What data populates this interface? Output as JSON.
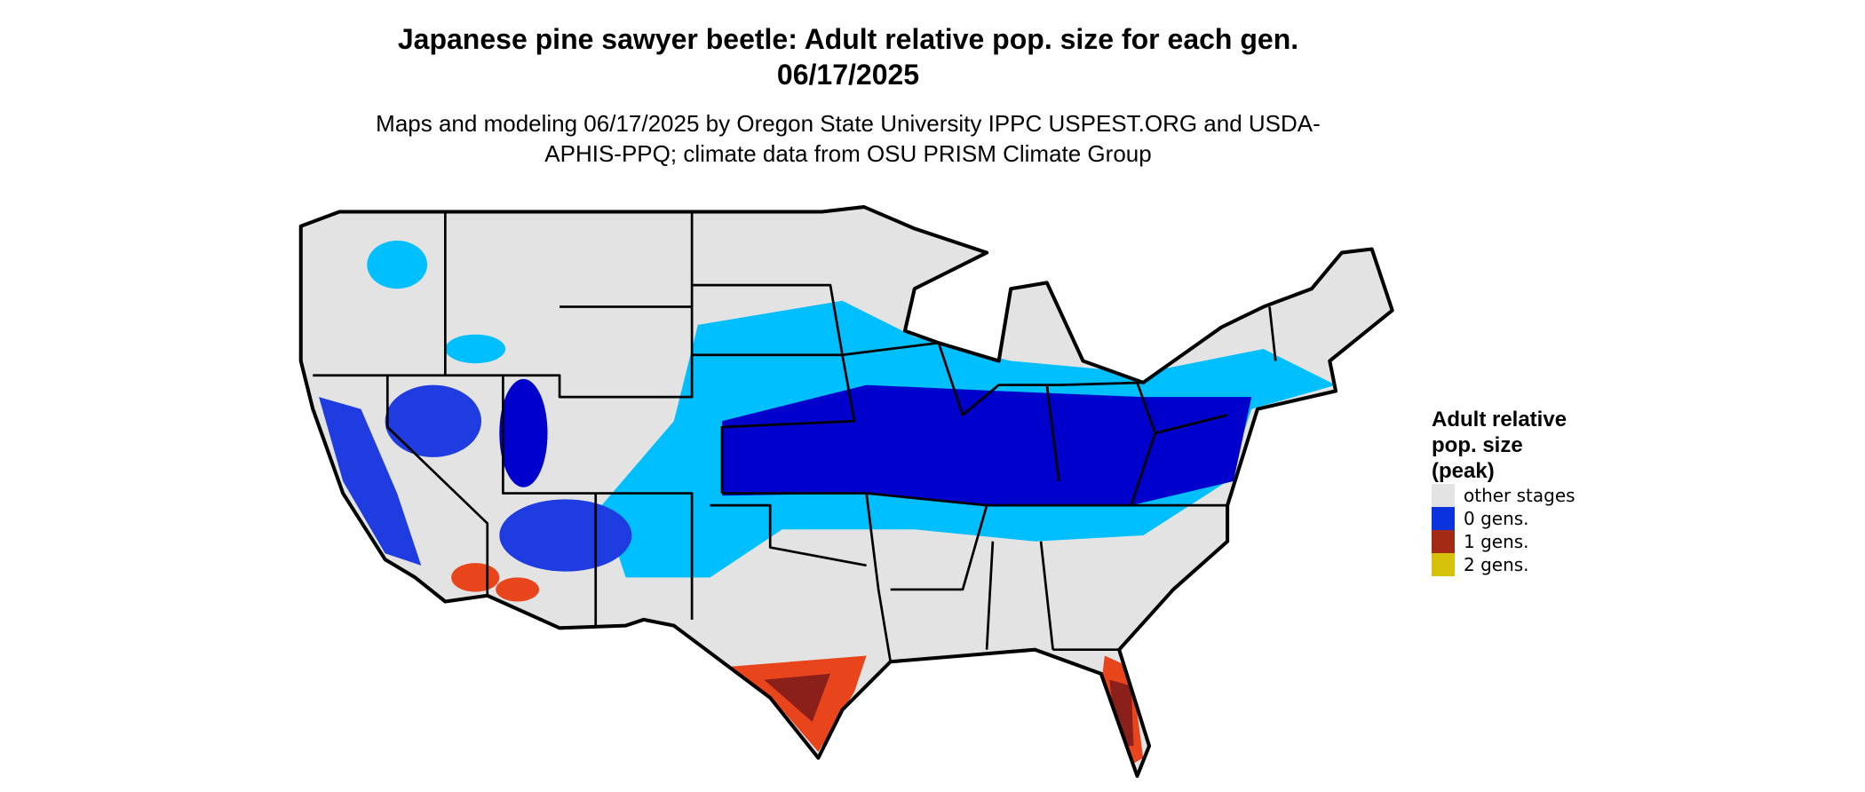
{
  "title": "Japanese pine sawyer beetle: Adult relative pop. size for each gen. 06/17/2025",
  "subtitle": "Maps and modeling 06/17/2025 by Oregon State University IPPC USPEST.ORG and USDA-APHIS-PPQ; climate data from OSU PRISM Climate Group",
  "legend": {
    "title": "Adult relative pop. size (peak)",
    "items": [
      {
        "label": "other stages",
        "color": "#e3e3e3"
      },
      {
        "label": "0 gens.",
        "color": "#0a33dd"
      },
      {
        "label": "1 gens.",
        "color": "#a52a16"
      },
      {
        "label": "2 gens.",
        "color": "#d7c20b"
      }
    ]
  }
}
